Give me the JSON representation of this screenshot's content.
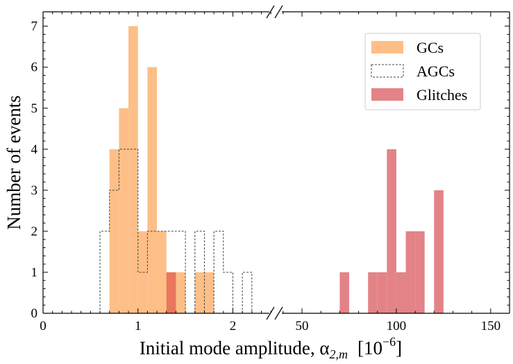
{
  "chart_data": {
    "type": "histogram",
    "xlabel": "Initial mode amplitude, α",
    "xlabel_subscript": "2,m",
    "xlabel_units": "[10",
    "xlabel_units_exp": "−6",
    "xlabel_units_close": "]",
    "ylabel": "Number of events",
    "ylim": [
      0,
      7.35
    ],
    "y_ticks": [
      "0",
      "1",
      "2",
      "3",
      "4",
      "5",
      "6",
      "7"
    ],
    "left_panel": {
      "xlim": [
        0,
        2.45
      ],
      "x_ticks": [
        "0",
        "1",
        "2"
      ],
      "x_tick_values": [
        0,
        1,
        2
      ]
    },
    "right_panel": {
      "xlim": [
        36,
        160
      ],
      "x_ticks": [
        "50",
        "100",
        "150"
      ],
      "x_tick_values": [
        50,
        100,
        150
      ]
    },
    "legend": {
      "position": "top-right",
      "entries": [
        "GCs",
        "AGCs",
        "Glitches"
      ]
    },
    "series": [
      {
        "name": "GCs",
        "style": "filled",
        "color": "#fdbf87",
        "panel": "left",
        "bins": [
          {
            "x0": 0.7,
            "x1": 0.8,
            "value": 4
          },
          {
            "x0": 0.8,
            "x1": 0.9,
            "value": 5
          },
          {
            "x0": 0.9,
            "x1": 1.0,
            "value": 7
          },
          {
            "x0": 1.0,
            "x1": 1.1,
            "value": 2
          },
          {
            "x0": 1.1,
            "x1": 1.2,
            "value": 6
          },
          {
            "x0": 1.2,
            "x1": 1.3,
            "value": 2
          },
          {
            "x0": 1.3,
            "x1": 1.4,
            "value": 1
          },
          {
            "x0": 1.4,
            "x1": 1.5,
            "value": 1
          },
          {
            "x0": 1.6,
            "x1": 1.7,
            "value": 1
          },
          {
            "x0": 1.7,
            "x1": 1.8,
            "value": 1
          }
        ]
      },
      {
        "name": "AGCs",
        "style": "step-dashed",
        "color": "#444444",
        "panel": "left",
        "bins": [
          {
            "x0": 0.6,
            "x1": 0.7,
            "value": 2
          },
          {
            "x0": 0.7,
            "x1": 0.8,
            "value": 3
          },
          {
            "x0": 0.8,
            "x1": 0.9,
            "value": 4
          },
          {
            "x0": 0.9,
            "x1": 1.0,
            "value": 4
          },
          {
            "x0": 1.0,
            "x1": 1.1,
            "value": 1
          },
          {
            "x0": 1.1,
            "x1": 1.2,
            "value": 2
          },
          {
            "x0": 1.2,
            "x1": 1.3,
            "value": 2
          },
          {
            "x0": 1.3,
            "x1": 1.4,
            "value": 2
          },
          {
            "x0": 1.4,
            "x1": 1.5,
            "value": 2
          },
          {
            "x0": 1.5,
            "x1": 1.6,
            "value": 0
          },
          {
            "x0": 1.6,
            "x1": 1.7,
            "value": 2
          },
          {
            "x0": 1.7,
            "x1": 1.8,
            "value": 0
          },
          {
            "x0": 1.8,
            "x1": 1.9,
            "value": 2
          },
          {
            "x0": 1.9,
            "x1": 2.0,
            "value": 1
          },
          {
            "x0": 2.0,
            "x1": 2.1,
            "value": 0
          },
          {
            "x0": 2.1,
            "x1": 2.2,
            "value": 1
          }
        ]
      },
      {
        "name": "Glitches",
        "style": "filled",
        "color": "#e38388",
        "panel": "right",
        "bins": [
          {
            "x0": 70,
            "x1": 75,
            "value": 1
          },
          {
            "x0": 85,
            "x1": 90,
            "value": 1
          },
          {
            "x0": 90,
            "x1": 95,
            "value": 1
          },
          {
            "x0": 95,
            "x1": 100,
            "value": 4
          },
          {
            "x0": 100,
            "x1": 105,
            "value": 1
          },
          {
            "x0": 105,
            "x1": 110,
            "value": 2
          },
          {
            "x0": 110,
            "x1": 115,
            "value": 2
          },
          {
            "x0": 120,
            "x1": 125,
            "value": 3
          }
        ]
      },
      {
        "name": "Glitches",
        "style": "filled",
        "color": "#e8775d",
        "panel": "left",
        "bins": [
          {
            "x0": 1.3,
            "x1": 1.4,
            "value": 1
          }
        ]
      }
    ]
  }
}
